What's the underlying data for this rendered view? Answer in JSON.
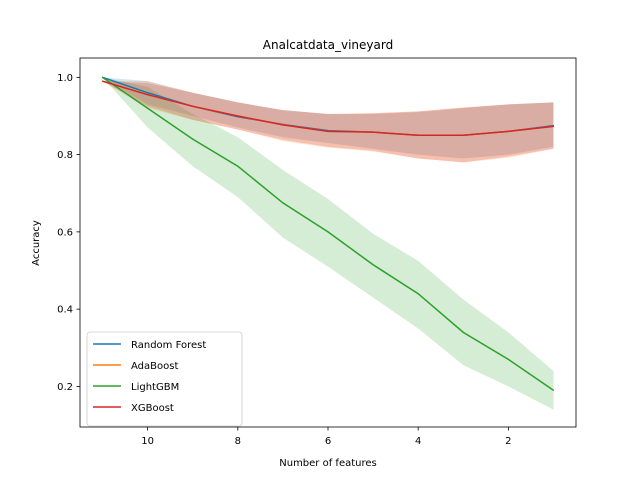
{
  "chart_data": {
    "type": "line",
    "title": "Analcatdata_vineyard",
    "xlabel": "Number of features",
    "ylabel": "Accuracy",
    "x": [
      11,
      10,
      9,
      8,
      7,
      6,
      5,
      4,
      3,
      2,
      1
    ],
    "xlim": [
      11.5,
      0.5
    ],
    "ylim": [
      0.095,
      1.05
    ],
    "x_ticks": [
      10,
      8,
      6,
      4,
      2
    ],
    "y_ticks": [
      0.2,
      0.4,
      0.6,
      0.8,
      1.0
    ],
    "x_tick_labels": [
      "10",
      "8",
      "6",
      "4",
      "2"
    ],
    "y_tick_labels": [
      "0.2",
      "0.4",
      "0.6",
      "0.8",
      "1.0"
    ],
    "legend_position": "lower-left",
    "grid": false,
    "series": [
      {
        "name": "Random Forest",
        "color": "#1f77b4",
        "values": [
          1.0,
          0.96,
          0.925,
          0.898,
          0.878,
          0.862,
          0.858,
          0.85,
          0.85,
          0.86,
          0.875
        ],
        "lower": [
          1.0,
          0.93,
          0.9,
          0.87,
          0.845,
          0.83,
          0.815,
          0.8,
          0.79,
          0.8,
          0.82
        ],
        "upper": [
          1.0,
          0.99,
          0.96,
          0.935,
          0.915,
          0.905,
          0.905,
          0.91,
          0.92,
          0.93,
          0.935
        ]
      },
      {
        "name": "AdaBoost",
        "color": "#ff7f0e",
        "values": [
          0.99,
          0.955,
          0.925,
          0.9,
          0.877,
          0.86,
          0.858,
          0.85,
          0.85,
          0.86,
          0.873
        ],
        "lower": [
          0.99,
          0.92,
          0.89,
          0.865,
          0.835,
          0.818,
          0.808,
          0.79,
          0.78,
          0.792,
          0.815
        ],
        "upper": [
          0.99,
          0.99,
          0.96,
          0.935,
          0.915,
          0.905,
          0.907,
          0.912,
          0.922,
          0.93,
          0.935
        ]
      },
      {
        "name": "LightGBM",
        "color": "#2ca02c",
        "values": [
          1.0,
          0.92,
          0.84,
          0.77,
          0.675,
          0.6,
          0.515,
          0.44,
          0.34,
          0.27,
          0.19
        ],
        "lower": [
          1.0,
          0.87,
          0.77,
          0.69,
          0.585,
          0.51,
          0.43,
          0.35,
          0.255,
          0.2,
          0.14
        ],
        "upper": [
          1.0,
          0.975,
          0.905,
          0.845,
          0.76,
          0.685,
          0.595,
          0.525,
          0.425,
          0.34,
          0.24
        ]
      },
      {
        "name": "XGBoost",
        "color": "#d62728",
        "values": [
          0.99,
          0.955,
          0.925,
          0.9,
          0.877,
          0.86,
          0.858,
          0.85,
          0.85,
          0.86,
          0.873
        ],
        "lower": [
          0.99,
          0.925,
          0.89,
          0.865,
          0.838,
          0.82,
          0.81,
          0.79,
          0.78,
          0.795,
          0.815
        ],
        "upper": [
          0.99,
          0.985,
          0.96,
          0.935,
          0.915,
          0.905,
          0.907,
          0.912,
          0.922,
          0.93,
          0.935
        ]
      }
    ]
  }
}
